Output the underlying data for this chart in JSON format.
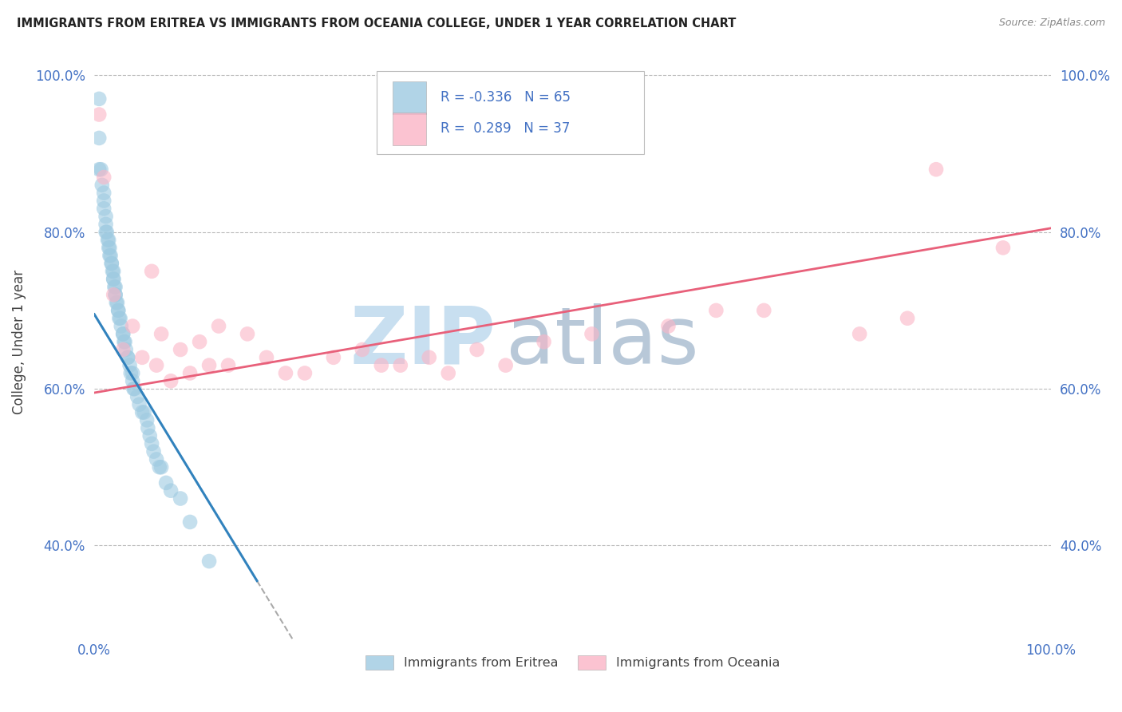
{
  "title": "IMMIGRANTS FROM ERITREA VS IMMIGRANTS FROM OCEANIA COLLEGE, UNDER 1 YEAR CORRELATION CHART",
  "source": "Source: ZipAtlas.com",
  "ylabel": "College, Under 1 year",
  "legend_label_1": "Immigrants from Eritrea",
  "legend_label_2": "Immigrants from Oceania",
  "R1": -0.336,
  "N1": 65,
  "R2": 0.289,
  "N2": 37,
  "color_eritrea": "#9ecae1",
  "color_oceania": "#fbb4c6",
  "line_color_eritrea": "#3182bd",
  "line_color_oceania": "#e8607a",
  "watermark_zip": "ZIP",
  "watermark_atlas": "atlas",
  "watermark_color_zip": "#c8dff0",
  "watermark_color_atlas": "#b8c8d8",
  "xlim": [
    0.0,
    1.0
  ],
  "ylim": [
    0.28,
    1.04
  ],
  "x_ticks": [
    0.0,
    1.0
  ],
  "y_ticks": [
    0.4,
    0.6,
    0.8,
    1.0
  ],
  "y_tick_labels": [
    "40.0%",
    "60.0%",
    "80.0%",
    "100.0%"
  ],
  "eritrea_x": [
    0.005,
    0.005,
    0.005,
    0.007,
    0.008,
    0.01,
    0.01,
    0.01,
    0.012,
    0.012,
    0.012,
    0.013,
    0.014,
    0.015,
    0.015,
    0.016,
    0.016,
    0.017,
    0.018,
    0.018,
    0.019,
    0.02,
    0.02,
    0.02,
    0.021,
    0.022,
    0.022,
    0.022,
    0.023,
    0.024,
    0.025,
    0.025,
    0.026,
    0.027,
    0.028,
    0.03,
    0.03,
    0.031,
    0.032,
    0.033,
    0.035,
    0.035,
    0.037,
    0.038,
    0.04,
    0.04,
    0.041,
    0.042,
    0.045,
    0.047,
    0.05,
    0.052,
    0.055,
    0.056,
    0.058,
    0.06,
    0.062,
    0.065,
    0.068,
    0.07,
    0.075,
    0.08,
    0.09,
    0.1,
    0.12
  ],
  "eritrea_y": [
    0.97,
    0.92,
    0.88,
    0.88,
    0.86,
    0.85,
    0.84,
    0.83,
    0.82,
    0.81,
    0.8,
    0.8,
    0.79,
    0.79,
    0.78,
    0.78,
    0.77,
    0.77,
    0.76,
    0.76,
    0.75,
    0.75,
    0.74,
    0.74,
    0.73,
    0.73,
    0.72,
    0.72,
    0.71,
    0.71,
    0.7,
    0.7,
    0.69,
    0.69,
    0.68,
    0.67,
    0.67,
    0.66,
    0.66,
    0.65,
    0.64,
    0.64,
    0.63,
    0.62,
    0.62,
    0.61,
    0.6,
    0.6,
    0.59,
    0.58,
    0.57,
    0.57,
    0.56,
    0.55,
    0.54,
    0.53,
    0.52,
    0.51,
    0.5,
    0.5,
    0.48,
    0.47,
    0.46,
    0.43,
    0.38
  ],
  "oceania_x": [
    0.005,
    0.01,
    0.02,
    0.03,
    0.04,
    0.05,
    0.06,
    0.065,
    0.07,
    0.08,
    0.09,
    0.1,
    0.11,
    0.12,
    0.13,
    0.14,
    0.16,
    0.18,
    0.2,
    0.22,
    0.25,
    0.28,
    0.3,
    0.32,
    0.35,
    0.37,
    0.4,
    0.43,
    0.47,
    0.52,
    0.6,
    0.65,
    0.7,
    0.8,
    0.85,
    0.88,
    0.95
  ],
  "oceania_y": [
    0.95,
    0.87,
    0.72,
    0.65,
    0.68,
    0.64,
    0.75,
    0.63,
    0.67,
    0.61,
    0.65,
    0.62,
    0.66,
    0.63,
    0.68,
    0.63,
    0.67,
    0.64,
    0.62,
    0.62,
    0.64,
    0.65,
    0.63,
    0.63,
    0.64,
    0.62,
    0.65,
    0.63,
    0.66,
    0.67,
    0.68,
    0.7,
    0.7,
    0.67,
    0.69,
    0.88,
    0.78
  ],
  "background_color": "#ffffff",
  "grid_color": "#bbbbbb",
  "title_fontsize": 10.5,
  "axis_tick_color": "#4472c4",
  "blue_line_solid_end": 0.17,
  "blue_line_dash_end": 0.3,
  "pink_line_start_y": 0.595,
  "pink_line_end_y": 0.805
}
